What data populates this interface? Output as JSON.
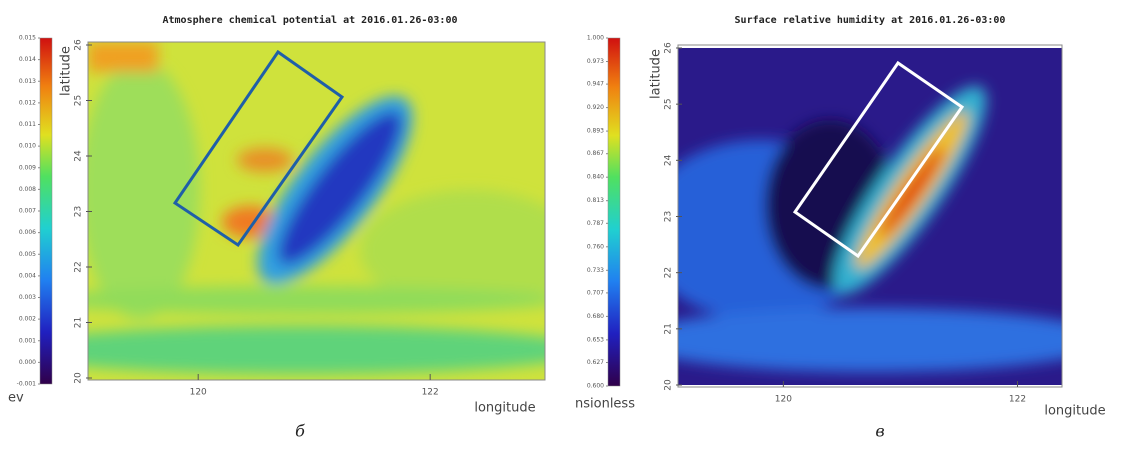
{
  "chart_data": [
    {
      "type": "heatmap",
      "title": "Atmosphere chemical potential at 2016.01.26-03:00",
      "x_label": "longitude",
      "y_label": "latitude",
      "xlim": [
        119.05,
        122.99
      ],
      "xticks": [
        120,
        122
      ],
      "ylim": [
        20,
        26
      ],
      "yticks": [
        20,
        21,
        22,
        23,
        24,
        25,
        26
      ],
      "clim": [
        -0.001,
        0.015
      ],
      "cticks": [
        -0.001,
        {
          "value": 0,
          "label": "0.000"
        },
        0.001,
        0.002,
        0.003,
        0.004,
        0.005,
        0.006,
        0.007,
        0.008,
        0.009,
        {
          "value": 0.01,
          "label": "0.010"
        },
        0.011,
        0.012,
        0.013,
        0.014,
        0.015
      ],
      "colorbar_label": "ev",
      "panel_label": "б"
    },
    {
      "type": "heatmap",
      "title": "Surface relative humidity at 2016.01.26-03:00",
      "x_label": "longitude",
      "y_label": "latitude",
      "xlim": [
        119.1,
        122.38
      ],
      "xticks": [
        120,
        122
      ],
      "ylim": [
        20,
        26
      ],
      "yticks": [
        20,
        21,
        22,
        23,
        24,
        25,
        26
      ],
      "clim": [
        0.6,
        1
      ],
      "cticks": [
        {
          "value": 0.6,
          "label": "0.600"
        },
        0.627,
        0.653,
        {
          "value": 0.68,
          "label": "0.680"
        },
        0.707,
        0.733,
        {
          "value": 0.76,
          "label": "0.760"
        },
        0.787,
        0.813,
        {
          "value": 0.84,
          "label": "0.840"
        },
        0.867,
        0.893,
        {
          "value": 0.92,
          "label": "0.920"
        },
        0.947,
        0.973,
        {
          "value": 1,
          "label": "1.000"
        }
      ],
      "colorbar_label": "nsionless",
      "panel_label": "в"
    }
  ]
}
